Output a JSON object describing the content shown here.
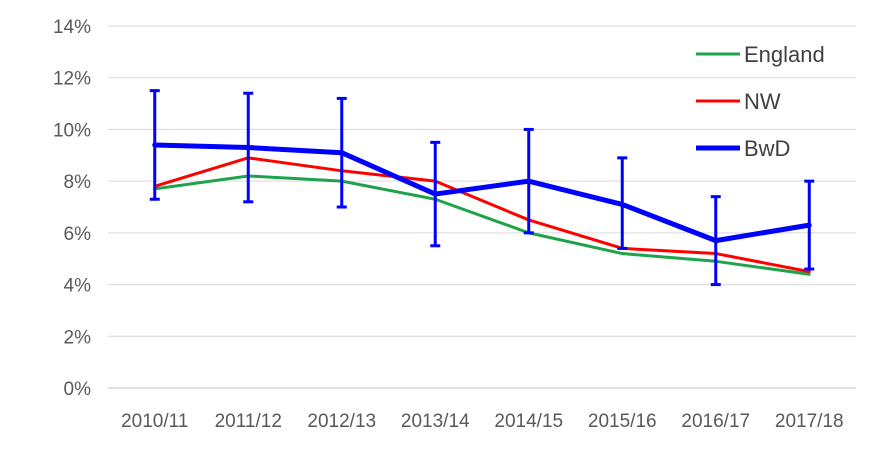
{
  "chart_data": {
    "type": "line",
    "title": "",
    "xlabel": "",
    "ylabel": "",
    "categories": [
      "2010/11",
      "2011/12",
      "2012/13",
      "2013/14",
      "2014/15",
      "2015/16",
      "2016/17",
      "2017/18"
    ],
    "y_ticks": [
      "0%",
      "2%",
      "4%",
      "6%",
      "8%",
      "10%",
      "12%",
      "14%"
    ],
    "ylim": [
      0,
      14
    ],
    "y_unit": "%",
    "grid": "horizontal",
    "legend_position": "top-right",
    "series": [
      {
        "name": "England",
        "color": "#1fa34a",
        "values": [
          7.7,
          8.2,
          8.0,
          7.3,
          6.0,
          5.2,
          4.9,
          4.4
        ]
      },
      {
        "name": "NW",
        "color": "#ff0000",
        "values": [
          7.8,
          8.9,
          8.4,
          8.0,
          6.5,
          5.4,
          5.2,
          4.5
        ]
      },
      {
        "name": "BwD",
        "color": "#0000ff",
        "values": [
          9.4,
          9.3,
          9.1,
          7.5,
          8.0,
          7.1,
          5.7,
          6.3
        ],
        "error_low": [
          7.3,
          7.2,
          7.0,
          5.5,
          6.0,
          5.4,
          4.0,
          4.6
        ],
        "error_high": [
          11.5,
          11.4,
          11.2,
          9.5,
          10.0,
          8.9,
          7.4,
          8.0
        ]
      }
    ]
  }
}
